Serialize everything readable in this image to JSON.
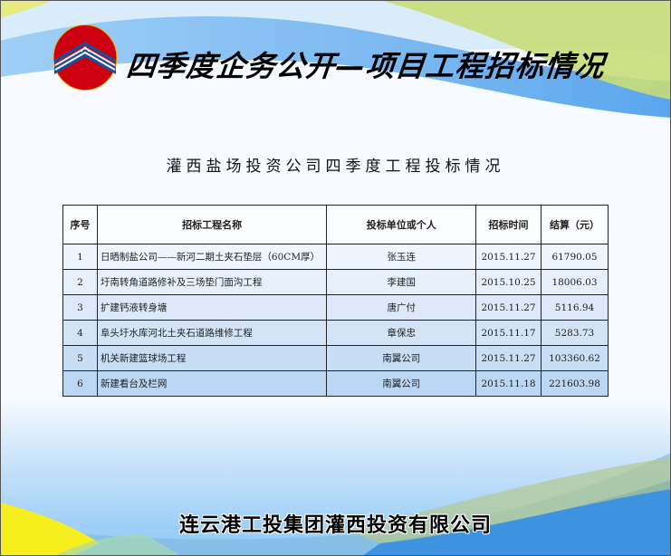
{
  "header": {
    "title": "四季度企务公开—项目工程招标情况",
    "logo_icon": "company-logo-icon"
  },
  "subtitle": "灌西盐场投资公司四季度工程投标情况",
  "table": {
    "columns": [
      "序号",
      "招标工程名称",
      "投标单位或个人",
      "招标时间",
      "结算（元）"
    ],
    "rows": [
      {
        "no": "1",
        "name": "日晒制盐公司——新河二期土夹石垫层（60CM厚）",
        "bidder": "张玉连",
        "date": "2015.11.27",
        "amount": "61790.05"
      },
      {
        "no": "2",
        "name": "圩南转角道路修补及三场垫门面沟工程",
        "bidder": "李建国",
        "date": "2015.10.25",
        "amount": "18006.03"
      },
      {
        "no": "3",
        "name": "扩建钙液转身塘",
        "bidder": "唐广付",
        "date": "2015.11.27",
        "amount": "5116.94"
      },
      {
        "no": "4",
        "name": "阜头圩水库河北土夹石道路维修工程",
        "bidder": "章保忠",
        "date": "2015.11.17",
        "amount": "5283.73"
      },
      {
        "no": "5",
        "name": "机关新建篮球场工程",
        "bidder": "南翼公司",
        "date": "2015.11.27",
        "amount": "103360.62"
      },
      {
        "no": "6",
        "name": "新建看台及栏网",
        "bidder": "南翼公司",
        "date": "2015.11.18",
        "amount": "221603.98"
      }
    ]
  },
  "footer": "连云港工投集团灌西投资有限公司",
  "colors": {
    "logo_red": "#cc0010",
    "logo_blue": "#1a4f9c",
    "wave_blue": "#6cb4f2",
    "wave_green": "#b5d66a",
    "accent_yellow": "#f7ee1e"
  }
}
